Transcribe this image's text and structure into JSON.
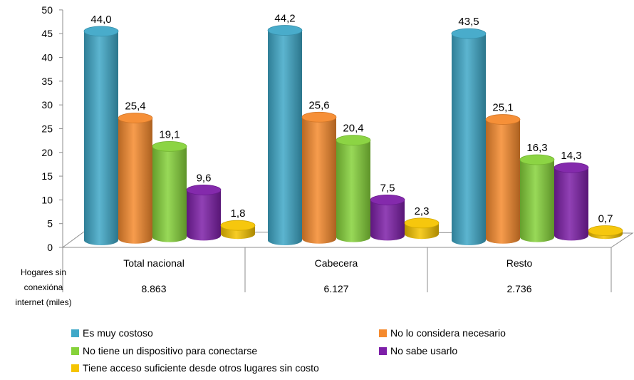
{
  "chart_data": {
    "type": "bar",
    "categories": [
      "Total nacional",
      "Cabecera",
      "Resto"
    ],
    "series": [
      {
        "name": "Es muy costoso",
        "color": "#3fa8c8",
        "values": [
          44.0,
          44.2,
          43.5
        ],
        "labels": [
          "44,0",
          "44,2",
          "43,5"
        ]
      },
      {
        "name": "No lo considera necesario",
        "color": "#f58a2e",
        "values": [
          25.4,
          25.6,
          25.1
        ],
        "labels": [
          "25,4",
          "25,6",
          "25,1"
        ]
      },
      {
        "name": "No tiene un dispositivo para conectarse",
        "color": "#86d23a",
        "values": [
          19.1,
          20.4,
          16.3
        ],
        "labels": [
          "19,1",
          "20,4",
          "16,3"
        ]
      },
      {
        "name": "No sabe usarlo",
        "color": "#7d1fa8",
        "values": [
          9.6,
          7.5,
          14.3
        ],
        "labels": [
          "9,6",
          "7,5",
          "14,3"
        ]
      },
      {
        "name": "Tiene acceso suficiente desde otros lugares sin costo",
        "color": "#f5c400",
        "values": [
          1.8,
          2.3,
          0.7
        ],
        "labels": [
          "1,8",
          "2,3",
          "0,7"
        ]
      }
    ],
    "yticks": [
      "0",
      "5",
      "10",
      "15",
      "20",
      "25",
      "30",
      "35",
      "40",
      "45",
      "50"
    ],
    "ylim": [
      0,
      50
    ],
    "table_row_label": "Hogares sin conexióna internet (miles)",
    "table_row_label_lines": [
      "Hogares sin",
      "conexióna",
      "internet (miles)"
    ],
    "table_values": [
      "8.863",
      "6.127",
      "2.736"
    ],
    "legend_placement": "bottom"
  }
}
